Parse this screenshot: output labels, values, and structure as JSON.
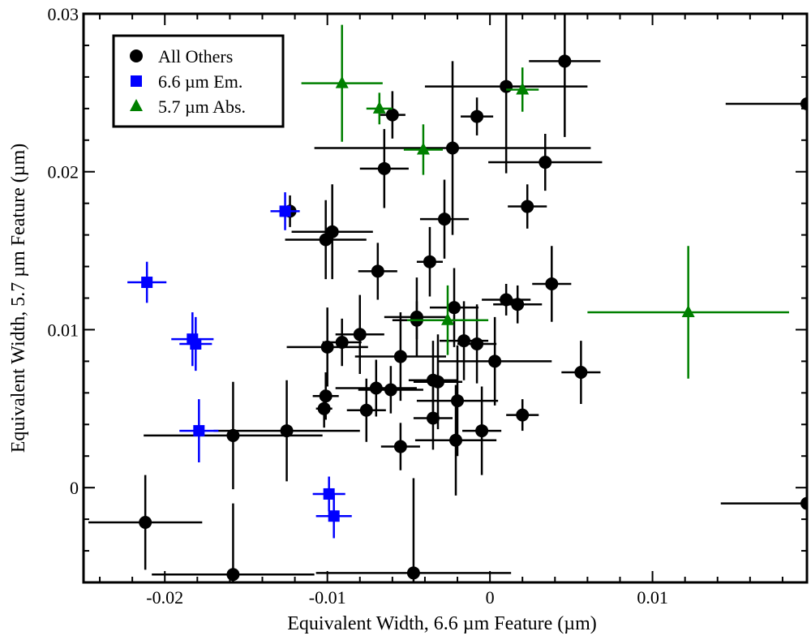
{
  "chart_data": {
    "type": "scatter",
    "title": "",
    "xlabel": "Equivalent Width, 6.6 µm Feature (µm)",
    "ylabel": "Equivalent Width, 5.7 µm Feature (µm)",
    "xlim": [
      -0.025,
      0.0195
    ],
    "ylim": [
      -0.006,
      0.03
    ],
    "x_ticks": [
      -0.02,
      -0.01,
      0,
      0.01
    ],
    "x_tick_labels": [
      "-0.02",
      "-0.01",
      "0",
      "0.01"
    ],
    "y_ticks": [
      0,
      0.01,
      0.02,
      0.03
    ],
    "y_tick_labels": [
      "0",
      "0.01",
      "0.02",
      "0.03"
    ],
    "grid": false,
    "legend_position": "top-left",
    "series": [
      {
        "name": "All Others",
        "marker": "circle",
        "color": "#000000",
        "points": [
          {
            "x": -0.0212,
            "y": -0.0022,
            "xerr": 0.0035,
            "yerr": 0.003
          },
          {
            "x": -0.0158,
            "y": 0.0033,
            "xerr": 0.0055,
            "yerr": 0.0034
          },
          {
            "x": -0.0158,
            "y": -0.0055,
            "xerr": 0.005,
            "yerr": 0.0045
          },
          {
            "x": -0.0125,
            "y": 0.0036,
            "xerr": 0.0045,
            "yerr": 0.0032
          },
          {
            "x": -0.0123,
            "y": 0.0175,
            "xerr": 0.0,
            "yerr": 0.001
          },
          {
            "x": -0.0101,
            "y": 0.0157,
            "xerr": 0.0025,
            "yerr": 0.0025
          },
          {
            "x": -0.0097,
            "y": 0.0162,
            "xerr": 0.0025,
            "yerr": 0.003
          },
          {
            "x": -0.01,
            "y": 0.0089,
            "xerr": 0.0025,
            "yerr": 0.0025
          },
          {
            "x": -0.0101,
            "y": 0.0058,
            "xerr": 0.0008,
            "yerr": 0.0015
          },
          {
            "x": -0.0102,
            "y": 0.005,
            "xerr": 0.0005,
            "yerr": 0.0012
          },
          {
            "x": -0.0091,
            "y": 0.0092,
            "xerr": 0.0012,
            "yerr": 0.0015
          },
          {
            "x": -0.008,
            "y": 0.0097,
            "xerr": 0.0015,
            "yerr": 0.0025
          },
          {
            "x": -0.0076,
            "y": 0.0049,
            "xerr": 0.0012,
            "yerr": 0.002
          },
          {
            "x": -0.0069,
            "y": 0.0137,
            "xerr": 0.0012,
            "yerr": 0.0018
          },
          {
            "x": -0.007,
            "y": 0.0063,
            "xerr": 0.0025,
            "yerr": 0.0018
          },
          {
            "x": -0.0065,
            "y": 0.0202,
            "xerr": 0.0015,
            "yerr": 0.0025
          },
          {
            "x": -0.006,
            "y": 0.0236,
            "xerr": 0.0008,
            "yerr": 0.0015
          },
          {
            "x": -0.0061,
            "y": 0.0062,
            "xerr": 0.002,
            "yerr": 0.0015
          },
          {
            "x": -0.0055,
            "y": 0.0083,
            "xerr": 0.0028,
            "yerr": 0.0028
          },
          {
            "x": -0.0055,
            "y": 0.0026,
            "xerr": 0.0012,
            "yerr": 0.0015
          },
          {
            "x": -0.0047,
            "y": -0.0054,
            "xerr": 0.006,
            "yerr": 0.006
          },
          {
            "x": -0.0045,
            "y": 0.0108,
            "xerr": 0.002,
            "yerr": 0.0025
          },
          {
            "x": -0.0045,
            "y": 0.0106,
            "xerr": 0.0015,
            "yerr": 0.0012
          },
          {
            "x": -0.0037,
            "y": 0.0143,
            "xerr": 0.0008,
            "yerr": 0.0022
          },
          {
            "x": -0.0035,
            "y": 0.0068,
            "xerr": 0.0015,
            "yerr": 0.0025
          },
          {
            "x": -0.0032,
            "y": 0.0067,
            "xerr": 0.0015,
            "yerr": 0.003
          },
          {
            "x": -0.0035,
            "y": 0.0044,
            "xerr": 0.0012,
            "yerr": 0.002
          },
          {
            "x": -0.0028,
            "y": 0.017,
            "xerr": 0.0015,
            "yerr": 0.0025
          },
          {
            "x": -0.0023,
            "y": 0.0215,
            "xerr": 0.0085,
            "yerr": 0.0055
          },
          {
            "x": -0.0022,
            "y": 0.0114,
            "xerr": 0.0015,
            "yerr": 0.0025
          },
          {
            "x": -0.002,
            "y": 0.0055,
            "xerr": 0.0025,
            "yerr": 0.0035
          },
          {
            "x": -0.0021,
            "y": 0.003,
            "xerr": 0.0025,
            "yerr": 0.0035
          },
          {
            "x": -0.0016,
            "y": 0.0093,
            "xerr": 0.0015,
            "yerr": 0.0025
          },
          {
            "x": -0.0008,
            "y": 0.0235,
            "xerr": 0.001,
            "yerr": 0.0012
          },
          {
            "x": -0.0008,
            "y": 0.0091,
            "xerr": 0.0012,
            "yerr": 0.0025
          },
          {
            "x": -0.0005,
            "y": 0.0036,
            "xerr": 0.0012,
            "yerr": 0.0028
          },
          {
            "x": 0.0003,
            "y": 0.008,
            "xerr": 0.0035,
            "yerr": 0.0028
          },
          {
            "x": 0.001,
            "y": 0.0254,
            "xerr": 0.005,
            "yerr": 0.0055
          },
          {
            "x": 0.001,
            "y": 0.0119,
            "xerr": 0.0015,
            "yerr": 0.001
          },
          {
            "x": 0.0017,
            "y": 0.0116,
            "xerr": 0.0015,
            "yerr": 0.0012
          },
          {
            "x": 0.002,
            "y": 0.0046,
            "xerr": 0.001,
            "yerr": 0.001
          },
          {
            "x": 0.0023,
            "y": 0.0178,
            "xerr": 0.0012,
            "yerr": 0.0014
          },
          {
            "x": 0.0034,
            "y": 0.0206,
            "xerr": 0.0035,
            "yerr": 0.0018
          },
          {
            "x": 0.0038,
            "y": 0.0129,
            "xerr": 0.0012,
            "yerr": 0.0024
          },
          {
            "x": 0.0046,
            "y": 0.027,
            "xerr": 0.0022,
            "yerr": 0.0048
          },
          {
            "x": 0.0056,
            "y": 0.0073,
            "xerr": 0.0012,
            "yerr": 0.002
          },
          {
            "x": 0.0195,
            "y": 0.0243,
            "xerr": 0.005,
            "yerr": 0.0058
          },
          {
            "x": 0.0195,
            "y": -0.001,
            "xerr": 0.0053,
            "yerr": 0.0045
          }
        ]
      },
      {
        "name": "6.6 µm Em.",
        "marker": "square",
        "color": "#0000ff",
        "points": [
          {
            "x": -0.0211,
            "y": 0.013,
            "xerr": 0.0012,
            "yerr": 0.0013
          },
          {
            "x": -0.0183,
            "y": 0.0094,
            "xerr": 0.0013,
            "yerr": 0.0017
          },
          {
            "x": -0.0181,
            "y": 0.0091,
            "xerr": 0.001,
            "yerr": 0.0017
          },
          {
            "x": -0.0179,
            "y": 0.0036,
            "xerr": 0.0012,
            "yerr": 0.002
          },
          {
            "x": -0.0126,
            "y": 0.0175,
            "xerr": 0.0009,
            "yerr": 0.0012
          },
          {
            "x": -0.0099,
            "y": -0.0004,
            "xerr": 0.001,
            "yerr": 0.0011
          },
          {
            "x": -0.0096,
            "y": -0.0018,
            "xerr": 0.0011,
            "yerr": 0.0014
          }
        ]
      },
      {
        "name": "5.7 µm Abs.",
        "marker": "triangle",
        "color": "#008000",
        "points": [
          {
            "x": -0.0091,
            "y": 0.0256,
            "xerr": 0.0025,
            "yerr": 0.0037
          },
          {
            "x": -0.0068,
            "y": 0.024,
            "xerr": 0.0008,
            "yerr": 0.001
          },
          {
            "x": -0.0041,
            "y": 0.0214,
            "xerr": 0.0012,
            "yerr": 0.0016
          },
          {
            "x": -0.0026,
            "y": 0.0106,
            "xerr": 0.0025,
            "yerr": 0.0022
          },
          {
            "x": 0.002,
            "y": 0.0252,
            "xerr": 0.001,
            "yerr": 0.0014
          },
          {
            "x": 0.0122,
            "y": 0.0111,
            "xerr": 0.0062,
            "yerr": 0.0042
          }
        ]
      }
    ]
  }
}
